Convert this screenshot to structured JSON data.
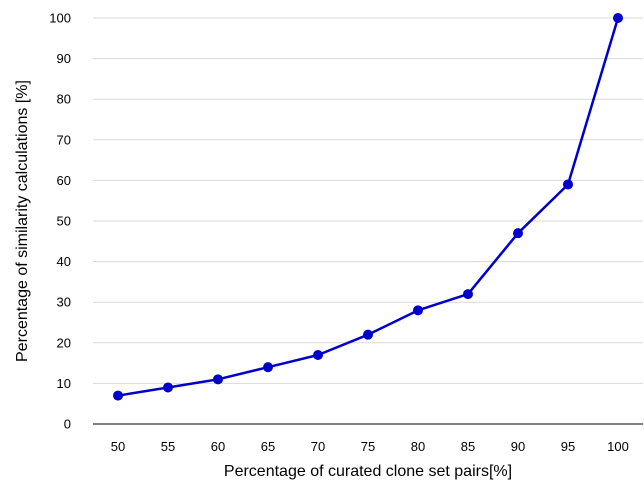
{
  "chart_data": {
    "type": "line",
    "title": "",
    "xlabel": "Percentage of curated clone set pairs[%]",
    "ylabel": "Percentage of similarity calculations [%]",
    "categories": [
      "50",
      "55",
      "60",
      "65",
      "70",
      "75",
      "80",
      "85",
      "90",
      "95",
      "100"
    ],
    "series": [
      {
        "values": [
          7,
          9,
          11,
          14,
          17,
          22,
          28,
          32,
          47,
          59,
          100
        ]
      }
    ],
    "ylim": [
      0,
      100
    ],
    "yticks": [
      "0",
      "10",
      "20",
      "30",
      "40",
      "50",
      "60",
      "70",
      "80",
      "90",
      "100"
    ],
    "grid": true,
    "legend": "none",
    "colors": {
      "series": "#0000cc",
      "grid": "#d9d9d9",
      "axis": "#000000"
    }
  }
}
